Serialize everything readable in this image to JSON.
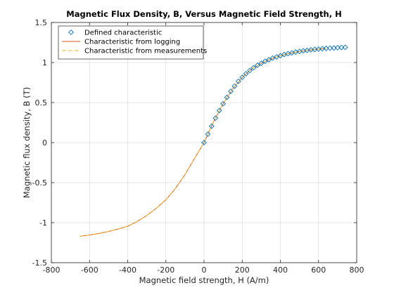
{
  "chart_data": {
    "type": "line",
    "title": "Magnetic Flux Density, B, Versus Magnetic Field Strength, H",
    "xlabel": "Magnetic field strength, H (A/m)",
    "ylabel": "Magnetic flux density, B (T)",
    "xlim": [
      -800,
      800
    ],
    "ylim": [
      -1.5,
      1.5
    ],
    "xticks": [
      -800,
      -600,
      -400,
      -200,
      0,
      200,
      400,
      600,
      800
    ],
    "xtick_labels": [
      "-800",
      "-600",
      "-400",
      "-200",
      "0",
      "200",
      "400",
      "600",
      "800"
    ],
    "yticks": [
      -1.5,
      -1,
      -0.5,
      0,
      0.5,
      1,
      1.5
    ],
    "ytick_labels": [
      "-1.5",
      "-1",
      "-0.5",
      "0",
      "0.5",
      "1",
      "1.5"
    ],
    "grid": true,
    "legend_position": "top-left",
    "series": [
      {
        "name": "Defined characteristic",
        "style": "diamond-markers",
        "color": "#0072BD",
        "x": [
          0,
          20,
          40,
          60,
          80,
          100,
          120,
          140,
          160,
          180,
          200,
          220,
          240,
          260,
          280,
          300,
          320,
          340,
          360,
          380,
          400,
          420,
          440,
          460,
          480,
          500,
          520,
          540,
          560,
          580,
          600,
          620,
          640,
          660,
          680,
          700,
          720,
          740
        ],
        "y": [
          0,
          0.105,
          0.205,
          0.305,
          0.4,
          0.485,
          0.565,
          0.64,
          0.705,
          0.765,
          0.815,
          0.86,
          0.9,
          0.935,
          0.965,
          0.99,
          1.015,
          1.035,
          1.055,
          1.07,
          1.085,
          1.1,
          1.11,
          1.12,
          1.13,
          1.138,
          1.146,
          1.152,
          1.158,
          1.163,
          1.168,
          1.172,
          1.176,
          1.179,
          1.182,
          1.185,
          1.188,
          1.19
        ]
      },
      {
        "name": "Characteristic from logging",
        "style": "solid-line",
        "color": "#D95319",
        "x": [
          -650,
          -600,
          -550,
          -500,
          -450,
          -400,
          -350,
          -300,
          -250,
          -200,
          -150,
          -100,
          -50,
          0,
          50,
          100,
          150,
          200,
          250,
          300,
          350,
          400,
          450,
          500,
          550,
          600,
          640
        ],
        "y": [
          -1.17,
          -1.155,
          -1.135,
          -1.11,
          -1.08,
          -1.045,
          -0.985,
          -0.91,
          -0.82,
          -0.715,
          -0.575,
          -0.4,
          -0.2,
          0,
          0.26,
          0.485,
          0.67,
          0.815,
          0.92,
          0.99,
          1.045,
          1.085,
          1.115,
          1.138,
          1.155,
          1.168,
          1.176
        ]
      },
      {
        "name": "Characteristic from measurements",
        "style": "dashed-line",
        "color": "#EDB120",
        "x": [
          -650,
          -600,
          -550,
          -500,
          -450,
          -400,
          -350,
          -300,
          -250,
          -200,
          -150,
          -100,
          -50,
          0,
          50,
          100,
          150,
          200,
          250,
          300,
          350,
          400,
          450,
          500,
          550,
          600,
          640
        ],
        "y": [
          -1.17,
          -1.155,
          -1.135,
          -1.11,
          -1.08,
          -1.045,
          -0.985,
          -0.91,
          -0.82,
          -0.715,
          -0.575,
          -0.4,
          -0.2,
          0,
          0.26,
          0.485,
          0.67,
          0.815,
          0.92,
          0.99,
          1.045,
          1.085,
          1.115,
          1.138,
          1.155,
          1.168,
          1.176
        ]
      }
    ]
  }
}
